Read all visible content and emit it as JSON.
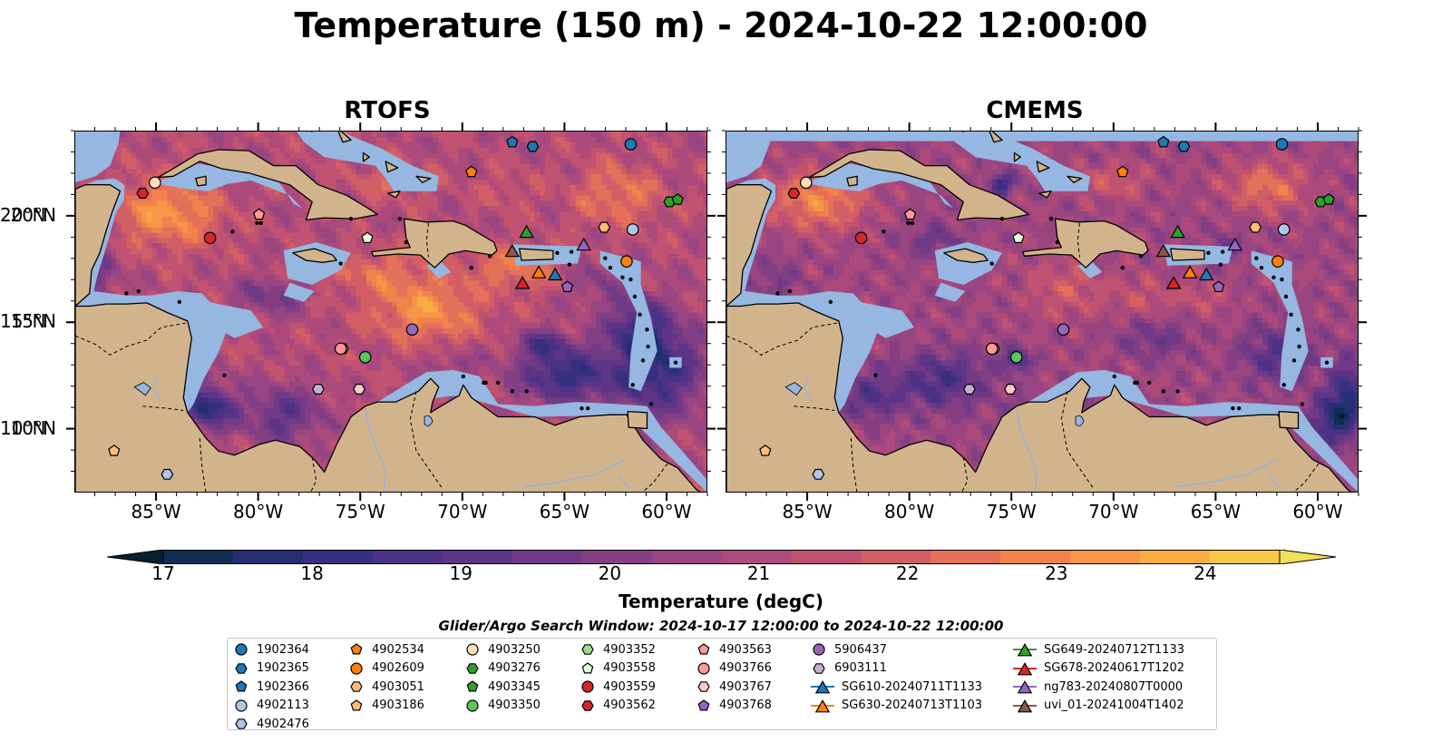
{
  "title": "Temperature (150 m) - 2024-10-22 12:00:00",
  "panels": [
    {
      "title": "RTOFS",
      "variant": "rtofs"
    },
    {
      "title": "CMEMS",
      "variant": "cmems"
    }
  ],
  "axes": {
    "lon_range": [
      -89,
      -58
    ],
    "lat_range": [
      7,
      24
    ],
    "x_ticks": [
      "85°W",
      "80°W",
      "75°W",
      "70°W",
      "65°W",
      "60°W"
    ],
    "y_ticks": [
      "20°N",
      "15°N",
      "10°N"
    ]
  },
  "colorbar": {
    "label": "Temperature (degC)",
    "ticks": [
      "17",
      "18",
      "19",
      "20",
      "21",
      "22",
      "23",
      "24"
    ],
    "range": [
      17,
      24.5
    ],
    "extend": "both",
    "colors": [
      "#06202f",
      "#0e2e53",
      "#232f72",
      "#36307f",
      "#4b3285",
      "#5e3586",
      "#713a86",
      "#843f84",
      "#984581",
      "#ab4a7b",
      "#c05272",
      "#d35f66",
      "#e4705a",
      "#f1824c",
      "#f79646",
      "#f9ae42",
      "#f8c847",
      "#f1e055"
    ],
    "ocean_shelf": "#95b7e1",
    "land": "#d2b48c"
  },
  "legend": {
    "title": "Glider/Argo Search Window: 2024-10-17 12:00:00 to 2024-10-22 12:00:00",
    "columns": [
      [
        {
          "label": "1902364",
          "marker": "circle",
          "color": "#1f77b4"
        },
        {
          "label": "1902365",
          "marker": "hexagon",
          "color": "#1f77b4"
        },
        {
          "label": "1902366",
          "marker": "pentagon",
          "color": "#1f77b4"
        },
        {
          "label": "4902113",
          "marker": "circle",
          "color": "#aec7e8"
        },
        {
          "label": "4902476",
          "marker": "hexagon",
          "color": "#aec7e8"
        }
      ],
      [
        {
          "label": "4902534",
          "marker": "pentagon",
          "color": "#ff7f0e"
        },
        {
          "label": "4902609",
          "marker": "circle",
          "color": "#ff7f0e"
        },
        {
          "label": "4903051",
          "marker": "hexagon",
          "color": "#ffbb78"
        },
        {
          "label": "4903186",
          "marker": "pentagon",
          "color": "#ffbb78"
        }
      ],
      [
        {
          "label": "4903250",
          "marker": "circle",
          "color": "#ffe0b8"
        },
        {
          "label": "4903276",
          "marker": "hexagon",
          "color": "#2ca02c"
        },
        {
          "label": "4903345",
          "marker": "pentagon",
          "color": "#2ca02c"
        },
        {
          "label": "4903350",
          "marker": "circle",
          "color": "#5bc45b"
        }
      ],
      [
        {
          "label": "4903352",
          "marker": "hexagon",
          "color": "#98df8a"
        },
        {
          "label": "4903558",
          "marker": "pentagon",
          "color": "#e8ffe0"
        },
        {
          "label": "4903559",
          "marker": "circle",
          "color": "#d62728"
        },
        {
          "label": "4903562",
          "marker": "hexagon",
          "color": "#d62728"
        }
      ],
      [
        {
          "label": "4903563",
          "marker": "pentagon",
          "color": "#ff9896"
        },
        {
          "label": "4903766",
          "marker": "circle",
          "color": "#ff9896"
        },
        {
          "label": "4903767",
          "marker": "hexagon",
          "color": "#ffc8c8"
        },
        {
          "label": "4903768",
          "marker": "pentagon",
          "color": "#9467bd"
        }
      ],
      [
        {
          "label": "5906437",
          "marker": "circle",
          "color": "#9467bd"
        },
        {
          "label": "6903111",
          "marker": "hexagon",
          "color": "#c5b0d5"
        },
        {
          "label": "SG610-20240711T1133",
          "marker": "triangle",
          "color": "#1f77b4"
        },
        {
          "label": "SG630-20240713T1103",
          "marker": "triangle",
          "color": "#ff7f0e"
        }
      ],
      [
        {
          "label": "SG649-20240712T1133",
          "marker": "triangle",
          "color": "#2ca02c"
        },
        {
          "label": "SG678-20240617T1202",
          "marker": "triangle",
          "color": "#d62728"
        },
        {
          "label": "ng783-20240807T0000",
          "marker": "triangle",
          "color": "#9467bd"
        },
        {
          "label": "uvi_01-20241004T1402",
          "marker": "triangle",
          "color": "#8c564b"
        }
      ]
    ]
  },
  "markers_on_map": [
    {
      "id": "1902364",
      "lon": -61.8,
      "lat": 23.4
    },
    {
      "id": "1902365",
      "lon": -66.6,
      "lat": 23.3
    },
    {
      "id": "1902366",
      "lon": -67.6,
      "lat": 23.5
    },
    {
      "id": "4902113",
      "lon": -61.7,
      "lat": 19.4
    },
    {
      "id": "4902476",
      "lon": -84.5,
      "lat": 7.9
    },
    {
      "id": "4902534",
      "lon": -69.6,
      "lat": 22.1
    },
    {
      "id": "4902609",
      "lon": -62.0,
      "lat": 17.9
    },
    {
      "id": "4903051",
      "lon": -63.1,
      "lat": 19.5
    },
    {
      "id": "4903186",
      "lon": -87.1,
      "lat": 9.0
    },
    {
      "id": "4903250",
      "lon": -85.1,
      "lat": 21.6
    },
    {
      "id": "4903276",
      "lon": -59.9,
      "lat": 20.7
    },
    {
      "id": "4903345",
      "lon": -59.5,
      "lat": 20.8
    },
    {
      "id": "4903350",
      "lon": -74.8,
      "lat": 13.4
    },
    {
      "id": "4903352",
      "lon": -75.9,
      "lat": 13.8
    },
    {
      "id": "4903558",
      "lon": -74.7,
      "lat": 19.0
    },
    {
      "id": "4903559",
      "lon": -82.4,
      "lat": 19.0
    },
    {
      "id": "4903562",
      "lon": -85.7,
      "lat": 21.1
    },
    {
      "id": "4903563",
      "lon": -80.0,
      "lat": 20.1
    },
    {
      "id": "4903766",
      "lon": -76.0,
      "lat": 13.8
    },
    {
      "id": "4903767",
      "lon": -75.1,
      "lat": 11.9
    },
    {
      "id": "4903768",
      "lon": -64.9,
      "lat": 16.7
    },
    {
      "id": "5906437",
      "lon": -72.5,
      "lat": 14.7
    },
    {
      "id": "6903111",
      "lon": -77.1,
      "lat": 11.9
    },
    {
      "id": "SG610-20240711T1133",
      "lon": -65.5,
      "lat": 17.3
    },
    {
      "id": "SG630-20240713T1103",
      "lon": -66.3,
      "lat": 17.4
    },
    {
      "id": "SG649-20240712T1133",
      "lon": -66.9,
      "lat": 19.3
    },
    {
      "id": "SG678-20240617T1202",
      "lon": -67.1,
      "lat": 16.9
    },
    {
      "id": "ng783-20240807T0000",
      "lon": -64.1,
      "lat": 18.7
    },
    {
      "id": "uvi_01-20241004T1402",
      "lon": -67.6,
      "lat": 18.4
    }
  ]
}
